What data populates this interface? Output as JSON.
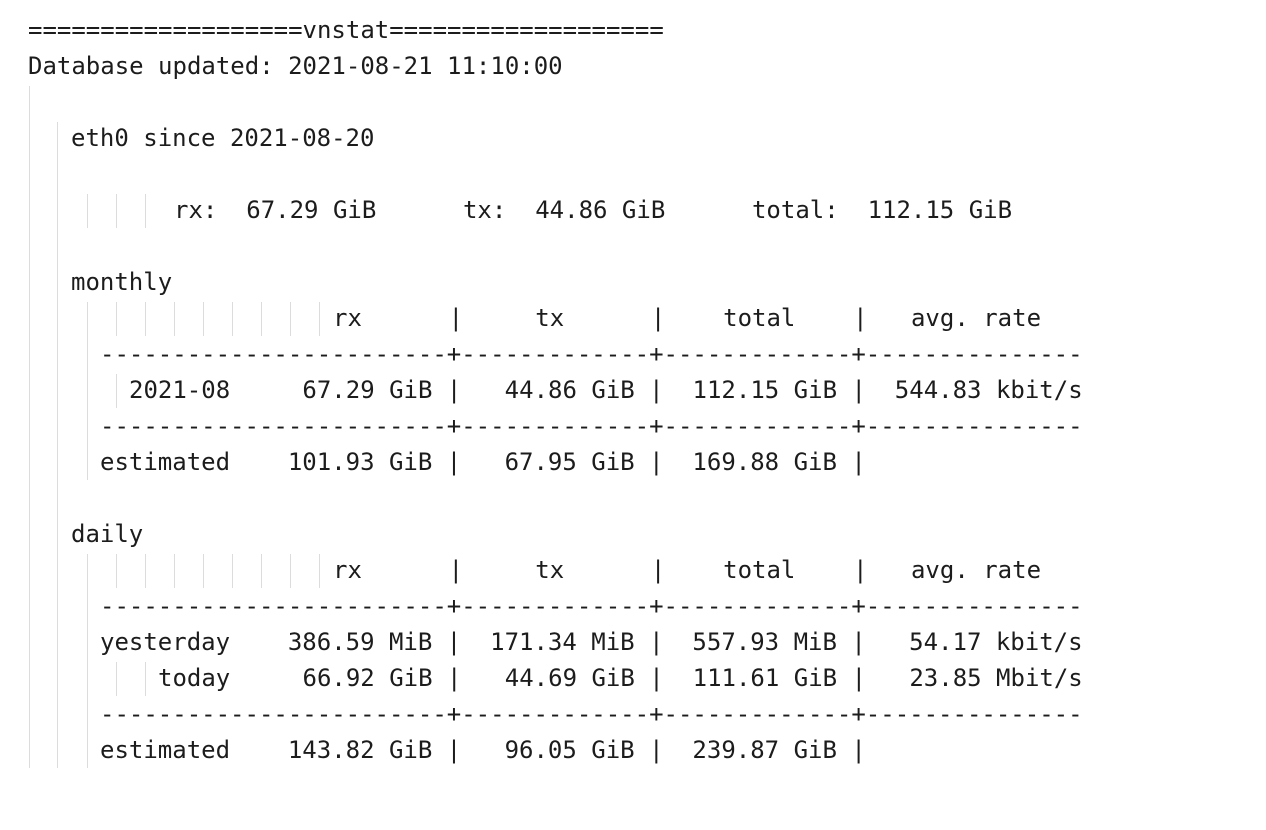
{
  "header": {
    "banner": "===================vnstat===================",
    "updated": "Database updated: 2021-08-21 11:10:00"
  },
  "interface": {
    "title": "eth0 since 2021-08-20",
    "summary": "rx:  67.29 GiB      tx:  44.86 GiB      total:  112.15 GiB"
  },
  "monthly": {
    "title": "monthly",
    "header_row": "rx      |     tx      |    total    |   avg. rate",
    "separator": "------------------------+-------------+-------------+---------------",
    "rows": [
      "2021-08     67.29 GiB |   44.86 GiB |  112.15 GiB |  544.83 kbit/s"
    ],
    "estimated": "estimated    101.93 GiB |   67.95 GiB |  169.88 GiB |"
  },
  "daily": {
    "title": "daily",
    "header_row": "rx      |     tx      |    total    |   avg. rate",
    "separator": "------------------------+-------------+-------------+---------------",
    "rows": [
      "yesterday    386.59 MiB |  171.34 MiB |  557.93 MiB |   54.17 kbit/s",
      "today     66.92 GiB |   44.69 GiB |  111.61 GiB |   23.85 Mbit/s"
    ],
    "estimated": "estimated    143.82 GiB |   96.05 GiB |  239.87 GiB |"
  }
}
